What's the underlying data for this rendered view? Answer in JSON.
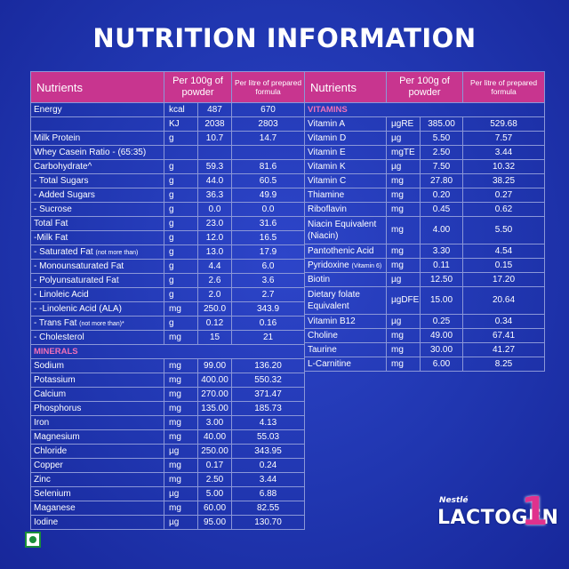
{
  "title": "NUTRITION INFORMATION",
  "headers": {
    "nutrients": "Nutrients",
    "per100g": "Per 100g of powder",
    "perlitre": "Per litre of prepared formula"
  },
  "left_rows": [
    {
      "name": "Energy",
      "unit": "kcal",
      "v100": "487",
      "vlitre": "670"
    },
    {
      "name": "",
      "unit": "KJ",
      "v100": "2038",
      "vlitre": "2803"
    },
    {
      "name": "Milk Protein",
      "unit": "g",
      "v100": "10.7",
      "vlitre": "14.7"
    },
    {
      "name": "Whey Casein Ratio - (65:35)",
      "unit": "",
      "v100": "",
      "vlitre": ""
    },
    {
      "name": "Carbohydrate^",
      "unit": "g",
      "v100": "59.3",
      "vlitre": "81.6"
    },
    {
      "name": "- Total Sugars",
      "unit": "g",
      "v100": "44.0",
      "vlitre": "60.5"
    },
    {
      "name": "- Added Sugars",
      "unit": "g",
      "v100": "36.3",
      "vlitre": "49.9"
    },
    {
      "name": "- Sucrose",
      "unit": "g",
      "v100": "0.0",
      "vlitre": "0.0"
    },
    {
      "name": "Total Fat",
      "unit": "g",
      "v100": "23.0",
      "vlitre": "31.6"
    },
    {
      "name": "-Milk Fat",
      "unit": "g",
      "v100": "12.0",
      "vlitre": "16.5"
    },
    {
      "name": "- Saturated Fat",
      "note": "(not more than)",
      "unit": "g",
      "v100": "13.0",
      "vlitre": "17.9"
    },
    {
      "name": "- Monounsaturated Fat",
      "unit": "g",
      "v100": "4.4",
      "vlitre": "6.0"
    },
    {
      "name": "- Polyunsaturated Fat",
      "unit": "g",
      "v100": "2.6",
      "vlitre": "3.6"
    },
    {
      "name": "- Linoleic Acid",
      "unit": "g",
      "v100": "2.0",
      "vlitre": "2.7"
    },
    {
      "name": "- -Linolenic Acid (ALA)",
      "unit": "mg",
      "v100": "250.0",
      "vlitre": "343.9"
    },
    {
      "name": "- Trans Fat",
      "note": "(not more than)*",
      "unit": "g",
      "v100": "0.12",
      "vlitre": "0.16"
    },
    {
      "name": "- Cholesterol",
      "unit": "mg",
      "v100": "15",
      "vlitre": "21"
    },
    {
      "section": "MINERALS"
    },
    {
      "name": "Sodium",
      "unit": "mg",
      "v100": "99.00",
      "vlitre": "136.20"
    },
    {
      "name": "Potassium",
      "unit": "mg",
      "v100": "400.00",
      "vlitre": "550.32"
    },
    {
      "name": "Calcium",
      "unit": "mg",
      "v100": "270.00",
      "vlitre": "371.47"
    },
    {
      "name": "Phosphorus",
      "unit": "mg",
      "v100": "135.00",
      "vlitre": "185.73"
    },
    {
      "name": "Iron",
      "unit": "mg",
      "v100": "3.00",
      "vlitre": "4.13"
    },
    {
      "name": "Magnesium",
      "unit": "mg",
      "v100": "40.00",
      "vlitre": "55.03"
    },
    {
      "name": "Chloride",
      "unit": "µg",
      "v100": "250.00",
      "vlitre": "343.95"
    },
    {
      "name": "Copper",
      "unit": "mg",
      "v100": "0.17",
      "vlitre": "0.24"
    },
    {
      "name": "Zinc",
      "unit": "mg",
      "v100": "2.50",
      "vlitre": "3.44"
    },
    {
      "name": "Selenium",
      "unit": "µg",
      "v100": "5.00",
      "vlitre": "6.88"
    },
    {
      "name": "Maganese",
      "unit": "mg",
      "v100": "60.00",
      "vlitre": "82.55"
    },
    {
      "name": "Iodine",
      "unit": "µg",
      "v100": "95.00",
      "vlitre": "130.70"
    }
  ],
  "right_rows": [
    {
      "section": "VITAMINS"
    },
    {
      "name": "Vitamin A",
      "unit": "µgRE",
      "v100": "385.00",
      "vlitre": "529.68"
    },
    {
      "name": "Vitamin D",
      "unit": "µg",
      "v100": "5.50",
      "vlitre": "7.57"
    },
    {
      "name": "Vitamin E",
      "unit": "mgTE",
      "v100": "2.50",
      "vlitre": "3.44"
    },
    {
      "name": "Vitamin K",
      "unit": "µg",
      "v100": "7.50",
      "vlitre": "10.32"
    },
    {
      "name": "Vitamin C",
      "unit": "mg",
      "v100": "27.80",
      "vlitre": "38.25"
    },
    {
      "name": "Thiamine",
      "unit": "mg",
      "v100": "0.20",
      "vlitre": "0.27"
    },
    {
      "name": "Riboflavin",
      "unit": "mg",
      "v100": "0.45",
      "vlitre": "0.62"
    },
    {
      "name": "Niacin Equivalent (Niacin)",
      "unit": "mg",
      "v100": "4.00",
      "vlitre": "5.50",
      "tall": true
    },
    {
      "name": "Pantothenic Acid",
      "unit": "mg",
      "v100": "3.30",
      "vlitre": "4.54"
    },
    {
      "name": "Pyridoxine",
      "note": "(Vitamin 6)",
      "unit": "mg",
      "v100": "0.11",
      "vlitre": "0.15"
    },
    {
      "name": "Biotin",
      "unit": "µg",
      "v100": "12.50",
      "vlitre": "17.20"
    },
    {
      "name": "Dietary folate Equivalent",
      "unit": "µgDFE",
      "v100": "15.00",
      "vlitre": "20.64",
      "tall": true
    },
    {
      "name": "Vitamin B12",
      "unit": "µg",
      "v100": "0.25",
      "vlitre": "0.34"
    },
    {
      "name": "Choline",
      "unit": "mg",
      "v100": "49.00",
      "vlitre": "67.41"
    },
    {
      "name": "Taurine",
      "unit": "mg",
      "v100": "30.00",
      "vlitre": "41.27"
    },
    {
      "name": "L-Carnitine",
      "unit": "mg",
      "v100": "6.00",
      "vlitre": "8.25"
    }
  ],
  "brand": {
    "maker": "Nestlé",
    "product": "LACTOGEN",
    "stage": "1"
  },
  "colors": {
    "background": "#2036b0",
    "header": "#c8358f",
    "section": "#f070b8",
    "stage_number": "#e0318d",
    "veg_mark": "#1a8f3a"
  }
}
